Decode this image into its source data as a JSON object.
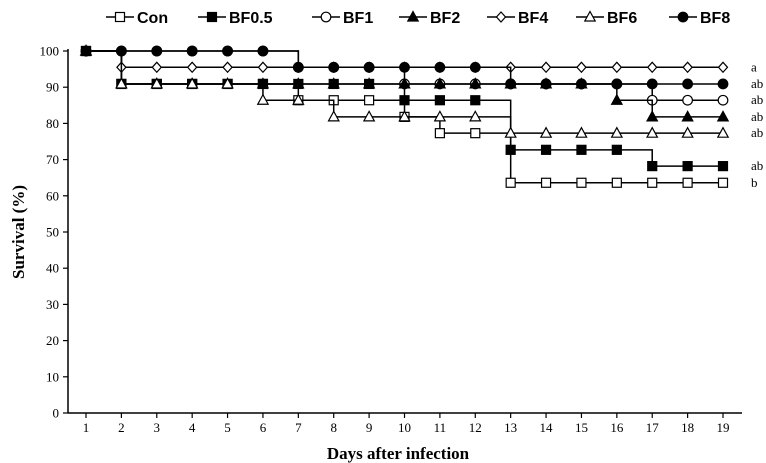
{
  "chart_data": {
    "type": "line",
    "xlabel": "Days after infection",
    "ylabel": "Survival (%)",
    "x": [
      1,
      2,
      3,
      4,
      5,
      6,
      7,
      8,
      9,
      10,
      11,
      12,
      13,
      14,
      15,
      16,
      17,
      18,
      19
    ],
    "xlim": [
      1,
      19
    ],
    "ylim": [
      0,
      100
    ],
    "yticks": [
      0,
      10,
      20,
      30,
      40,
      50,
      60,
      70,
      80,
      90,
      100
    ],
    "grid": false,
    "legend_position": "top",
    "series": [
      {
        "name": "Con",
        "marker": "square-open",
        "values": [
          100,
          90.9,
          90.9,
          90.9,
          90.9,
          90.9,
          86.4,
          86.4,
          86.4,
          81.8,
          77.3,
          77.3,
          63.6,
          63.6,
          63.6,
          63.6,
          63.6,
          63.6,
          63.6
        ]
      },
      {
        "name": "BF0.5",
        "marker": "square-filled",
        "values": [
          100,
          90.9,
          90.9,
          90.9,
          90.9,
          90.9,
          90.9,
          90.9,
          90.9,
          86.4,
          86.4,
          86.4,
          72.7,
          72.7,
          72.7,
          72.7,
          68.2,
          68.2,
          68.2
        ]
      },
      {
        "name": "BF1",
        "marker": "circle-open",
        "values": [
          100,
          100,
          100,
          100,
          100,
          100,
          95.5,
          95.5,
          95.5,
          90.9,
          90.9,
          90.9,
          90.9,
          90.9,
          90.9,
          90.9,
          86.4,
          86.4,
          86.4
        ]
      },
      {
        "name": "BF2",
        "marker": "triangle-filled",
        "values": [
          100,
          90.9,
          90.9,
          90.9,
          90.9,
          90.9,
          90.9,
          90.9,
          90.9,
          90.9,
          90.9,
          90.9,
          90.9,
          90.9,
          90.9,
          86.4,
          81.8,
          81.8,
          81.8
        ]
      },
      {
        "name": "BF4",
        "marker": "diamond-open",
        "values": [
          100,
          95.5,
          95.5,
          95.5,
          95.5,
          95.5,
          95.5,
          95.5,
          95.5,
          95.5,
          95.5,
          95.5,
          95.5,
          95.5,
          95.5,
          95.5,
          95.5,
          95.5,
          95.5
        ]
      },
      {
        "name": "BF6",
        "marker": "triangle-open",
        "values": [
          100,
          90.9,
          90.9,
          90.9,
          90.9,
          86.4,
          86.4,
          81.8,
          81.8,
          81.8,
          81.8,
          81.8,
          77.3,
          77.3,
          77.3,
          77.3,
          77.3,
          77.3,
          77.3
        ]
      },
      {
        "name": "BF8",
        "marker": "circle-filled",
        "values": [
          100,
          100,
          100,
          100,
          100,
          100,
          95.5,
          95.5,
          95.5,
          95.5,
          95.5,
          95.5,
          90.9,
          90.9,
          90.9,
          90.9,
          90.9,
          90.9,
          90.9
        ]
      }
    ],
    "significance_labels": [
      {
        "text": "a",
        "y": 95.5
      },
      {
        "text": "ab",
        "y": 90.9
      },
      {
        "text": "ab",
        "y": 86.4
      },
      {
        "text": "ab",
        "y": 81.8
      },
      {
        "text": "ab",
        "y": 77.3
      },
      {
        "text": "ab",
        "y": 68.2
      },
      {
        "text": "b",
        "y": 63.6
      }
    ]
  }
}
